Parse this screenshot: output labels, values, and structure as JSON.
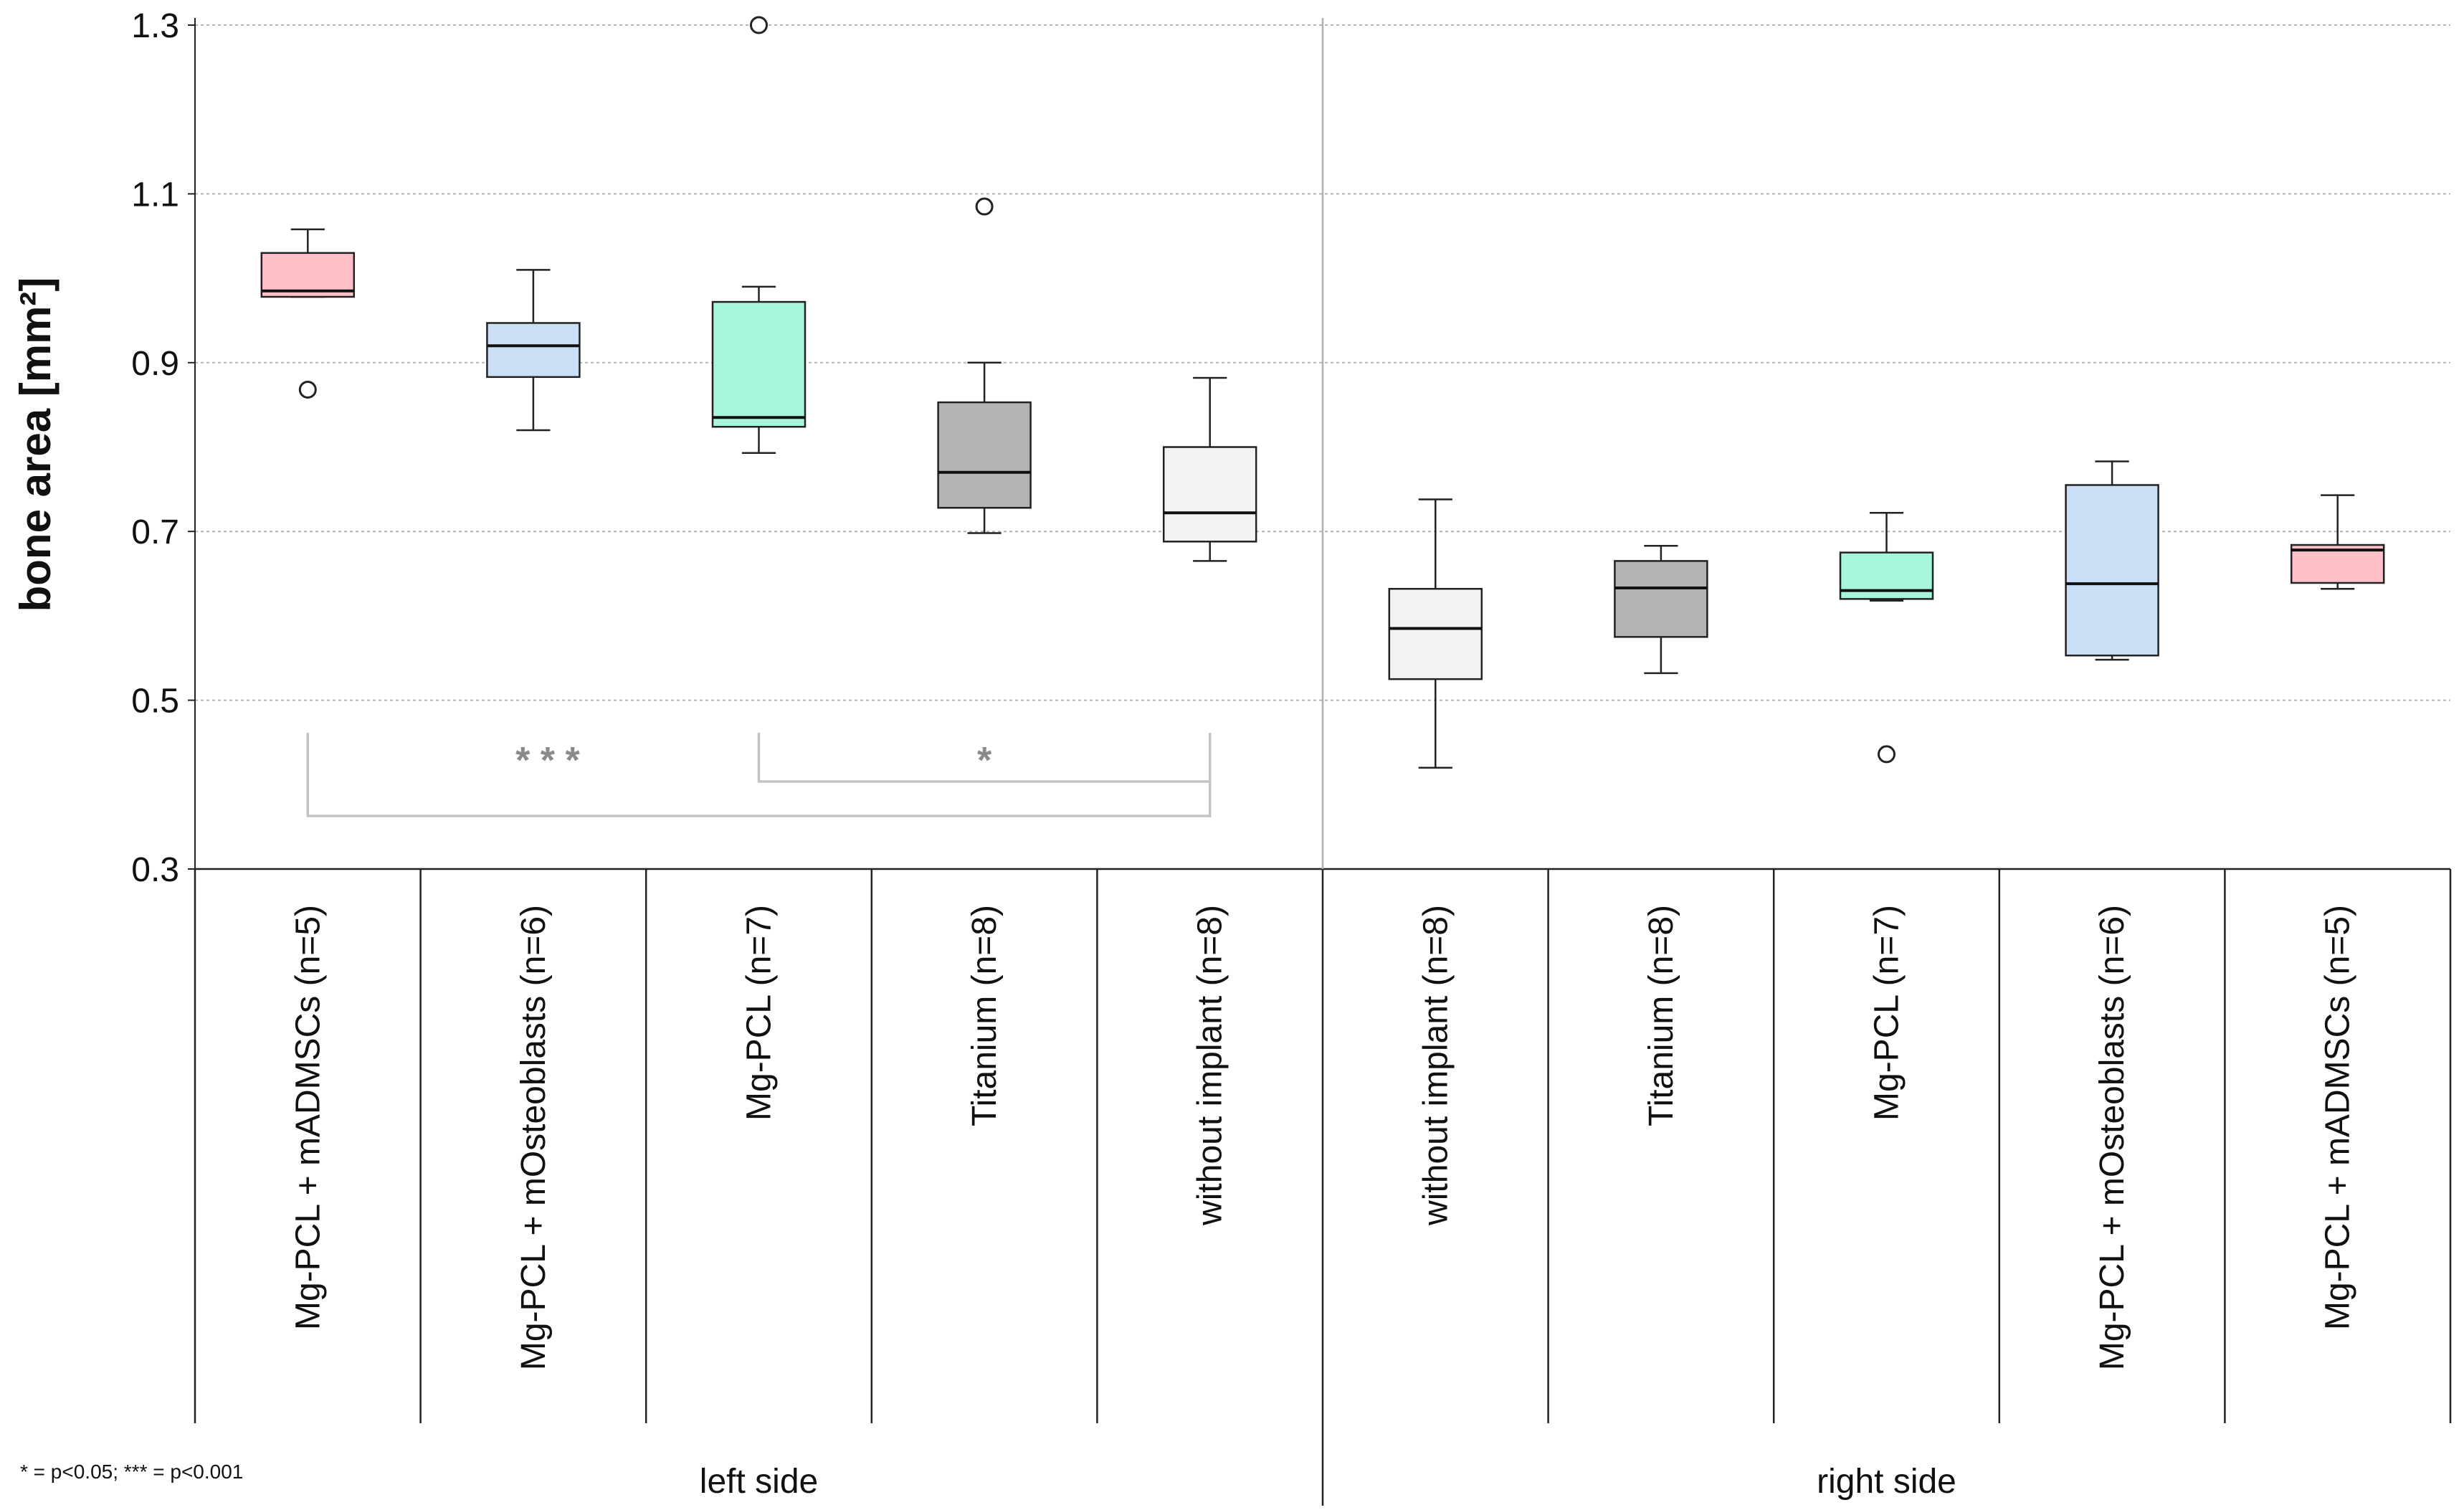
{
  "chart_data": {
    "type": "boxplot",
    "ylabel": "bone area [mm²]",
    "ylim": [
      0.3,
      1.3
    ],
    "yticks": [
      0.3,
      0.5,
      0.7,
      0.9,
      1.1,
      1.3
    ],
    "ytick_labels": [
      "0.3",
      "0.5",
      "0.7",
      "0.9",
      "1.1",
      "1.3"
    ],
    "grid": "horizontal dotted",
    "colors": {
      "mADMSCs": "#ffc0c7",
      "mOsteoblasts": "#c9dff5",
      "MgPCL": "#a8f5de",
      "Titanium": "#b3b3b3",
      "without": "#f3f3f3"
    },
    "groups": [
      {
        "side": "left side",
        "label": "Mg-PCL + mADMSCs (n=5)",
        "color_key": "mADMSCs",
        "whisker_low": 0.978,
        "q1": 0.978,
        "median": 0.985,
        "q3": 1.03,
        "whisker_high": 1.058,
        "outliers": [
          0.868
        ]
      },
      {
        "side": "left side",
        "label": "Mg-PCL + mOsteoblasts (n=6)",
        "color_key": "mOsteoblasts",
        "whisker_low": 0.82,
        "q1": 0.883,
        "median": 0.92,
        "q3": 0.947,
        "whisker_high": 1.01,
        "outliers": []
      },
      {
        "side": "left side",
        "label": "Mg-PCL (n=7)",
        "color_key": "MgPCL",
        "whisker_low": 0.793,
        "q1": 0.824,
        "median": 0.835,
        "q3": 0.972,
        "whisker_high": 0.99,
        "outliers": [
          1.3
        ]
      },
      {
        "side": "left side",
        "label": "Titanium (n=8)",
        "color_key": "Titanium",
        "whisker_low": 0.698,
        "q1": 0.728,
        "median": 0.77,
        "q3": 0.853,
        "whisker_high": 0.9,
        "outliers": [
          1.085
        ]
      },
      {
        "side": "left side",
        "label": "without implant (n=8)",
        "color_key": "without",
        "whisker_low": 0.665,
        "q1": 0.688,
        "median": 0.722,
        "q3": 0.8,
        "whisker_high": 0.882,
        "outliers": []
      },
      {
        "side": "right side",
        "label": "without implant (n=8)",
        "color_key": "without",
        "whisker_low": 0.42,
        "q1": 0.525,
        "median": 0.585,
        "q3": 0.632,
        "whisker_high": 0.738,
        "outliers": []
      },
      {
        "side": "right side",
        "label": "Titanium (n=8)",
        "color_key": "Titanium",
        "whisker_low": 0.532,
        "q1": 0.575,
        "median": 0.633,
        "q3": 0.665,
        "whisker_high": 0.683,
        "outliers": []
      },
      {
        "side": "right side",
        "label": "Mg-PCL (n=7)",
        "color_key": "MgPCL",
        "whisker_low": 0.618,
        "q1": 0.62,
        "median": 0.63,
        "q3": 0.675,
        "whisker_high": 0.722,
        "outliers": [
          0.436
        ]
      },
      {
        "side": "right side",
        "label": "Mg-PCL + mOsteoblasts (n=6)",
        "color_key": "mOsteoblasts",
        "whisker_low": 0.548,
        "q1": 0.553,
        "median": 0.638,
        "q3": 0.755,
        "whisker_high": 0.783,
        "outliers": []
      },
      {
        "side": "right side",
        "label": "Mg-PCL + mADMSCs (n=5)",
        "color_key": "mADMSCs",
        "whisker_low": 0.632,
        "q1": 0.639,
        "median": 0.678,
        "q3": 0.684,
        "whisker_high": 0.743,
        "outliers": []
      }
    ],
    "sides": [
      "left side",
      "right side"
    ],
    "significance": [
      {
        "from_group": 0,
        "to_group": 4,
        "label": "***"
      },
      {
        "from_group": 2,
        "to_group": 4,
        "label": "*"
      }
    ],
    "footnote": "* = p<0.05; *** = p<0.001"
  }
}
